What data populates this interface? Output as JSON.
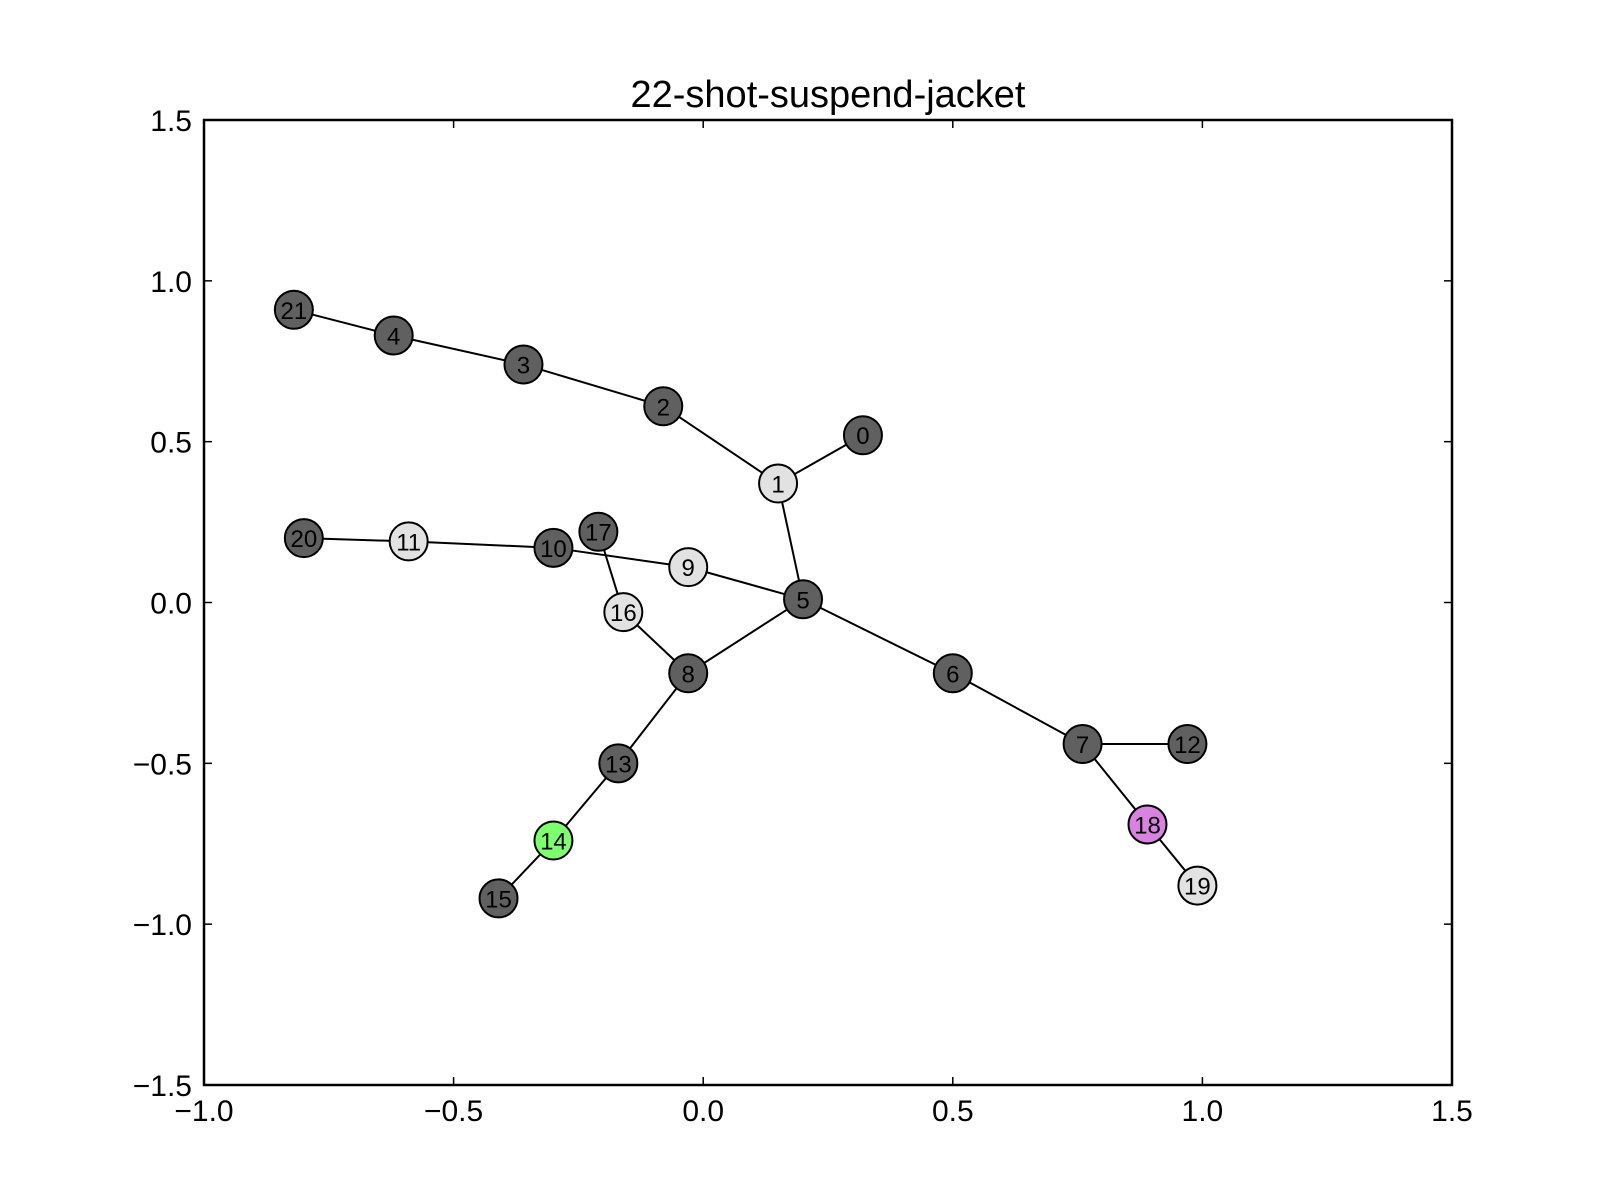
{
  "chart_data": {
    "type": "scatter",
    "title": "22-shot-suspend-jacket",
    "xlim": [
      -1.0,
      1.5
    ],
    "ylim": [
      -1.5,
      1.5
    ],
    "x_ticks": [
      -1.0,
      -0.5,
      0.0,
      0.5,
      1.0,
      1.5
    ],
    "y_ticks": [
      -1.5,
      -1.0,
      -0.5,
      0.0,
      0.5,
      1.0,
      1.5
    ],
    "x_tick_labels": [
      "−1.0",
      "−0.5",
      "0.0",
      "0.5",
      "1.0",
      "1.5"
    ],
    "y_tick_labels": [
      "−1.5",
      "−1.0",
      "−0.5",
      "0.0",
      "0.5",
      "1.0",
      "1.5"
    ],
    "grid": false,
    "colors": {
      "dark": "#606060",
      "light": "#e2e2e2",
      "green": "#7eff6e",
      "purple": "#d982e1",
      "edge": "#000000"
    },
    "nodes": [
      {
        "id": "0",
        "x": 0.32,
        "y": 0.52,
        "color": "dark"
      },
      {
        "id": "1",
        "x": 0.15,
        "y": 0.37,
        "color": "light"
      },
      {
        "id": "2",
        "x": -0.08,
        "y": 0.61,
        "color": "dark"
      },
      {
        "id": "3",
        "x": -0.36,
        "y": 0.74,
        "color": "dark"
      },
      {
        "id": "4",
        "x": -0.62,
        "y": 0.83,
        "color": "dark"
      },
      {
        "id": "5",
        "x": 0.2,
        "y": 0.01,
        "color": "dark"
      },
      {
        "id": "6",
        "x": 0.5,
        "y": -0.22,
        "color": "dark"
      },
      {
        "id": "7",
        "x": 0.76,
        "y": -0.44,
        "color": "dark"
      },
      {
        "id": "8",
        "x": -0.03,
        "y": -0.22,
        "color": "dark"
      },
      {
        "id": "9",
        "x": -0.03,
        "y": 0.11,
        "color": "light"
      },
      {
        "id": "10",
        "x": -0.3,
        "y": 0.17,
        "color": "dark"
      },
      {
        "id": "11",
        "x": -0.59,
        "y": 0.19,
        "color": "light"
      },
      {
        "id": "12",
        "x": 0.97,
        "y": -0.44,
        "color": "dark"
      },
      {
        "id": "13",
        "x": -0.17,
        "y": -0.5,
        "color": "dark"
      },
      {
        "id": "14",
        "x": -0.3,
        "y": -0.74,
        "color": "green"
      },
      {
        "id": "15",
        "x": -0.41,
        "y": -0.92,
        "color": "dark"
      },
      {
        "id": "16",
        "x": -0.16,
        "y": -0.03,
        "color": "light"
      },
      {
        "id": "17",
        "x": -0.21,
        "y": 0.22,
        "color": "dark"
      },
      {
        "id": "18",
        "x": 0.89,
        "y": -0.69,
        "color": "purple"
      },
      {
        "id": "19",
        "x": 0.99,
        "y": -0.88,
        "color": "light"
      },
      {
        "id": "20",
        "x": -0.8,
        "y": 0.2,
        "color": "dark"
      },
      {
        "id": "21",
        "x": -0.82,
        "y": 0.91,
        "color": "dark"
      }
    ],
    "edges": [
      [
        "21",
        "4"
      ],
      [
        "4",
        "3"
      ],
      [
        "3",
        "2"
      ],
      [
        "2",
        "1"
      ],
      [
        "1",
        "0"
      ],
      [
        "1",
        "5"
      ],
      [
        "20",
        "11"
      ],
      [
        "11",
        "10"
      ],
      [
        "10",
        "9"
      ],
      [
        "9",
        "5"
      ],
      [
        "17",
        "16"
      ],
      [
        "16",
        "8"
      ],
      [
        "8",
        "5"
      ],
      [
        "5",
        "6"
      ],
      [
        "6",
        "7"
      ],
      [
        "7",
        "12"
      ],
      [
        "7",
        "18"
      ],
      [
        "18",
        "19"
      ],
      [
        "8",
        "13"
      ],
      [
        "13",
        "14"
      ],
      [
        "14",
        "15"
      ]
    ]
  }
}
